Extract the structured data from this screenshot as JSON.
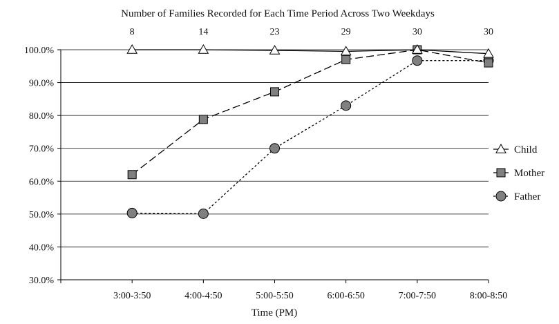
{
  "chart_data": {
    "type": "line",
    "title": "Number of Families Recorded for Each Time Period Across Two Weekdays",
    "xlabel": "Time (PM)",
    "ylabel": "",
    "categories": [
      "3:00-3:50",
      "4:00-4:50",
      "5:00-5:50",
      "6:00-6:50",
      "7:00-7:50",
      "8:00-8:50"
    ],
    "top_counts": [
      "8",
      "14",
      "23",
      "29",
      "30",
      "30"
    ],
    "ylim": [
      30,
      100
    ],
    "y_ticks": [
      30,
      40,
      50,
      60,
      70,
      80,
      90,
      100
    ],
    "y_tick_labels": [
      "30.0%",
      "40.0%",
      "50.0%",
      "60.0%",
      "70.0%",
      "80.0%",
      "90.0%",
      "100.0%"
    ],
    "grid": true,
    "legend_position": "right",
    "series": [
      {
        "name": "Child",
        "values": [
          100,
          100,
          99.8,
          99.5,
          100,
          98.8
        ],
        "marker": "triangle",
        "line_style": "solid",
        "marker_fill": "#ffffff"
      },
      {
        "name": "Mother",
        "values": [
          62,
          78.8,
          87.2,
          97,
          100,
          96
        ],
        "marker": "square",
        "line_style": "dashed",
        "marker_fill": "#808080"
      },
      {
        "name": "Father",
        "values": [
          50.3,
          50.1,
          70,
          83,
          96.7,
          96.7
        ],
        "marker": "circle",
        "line_style": "dotted",
        "marker_fill": "#808080"
      }
    ]
  }
}
